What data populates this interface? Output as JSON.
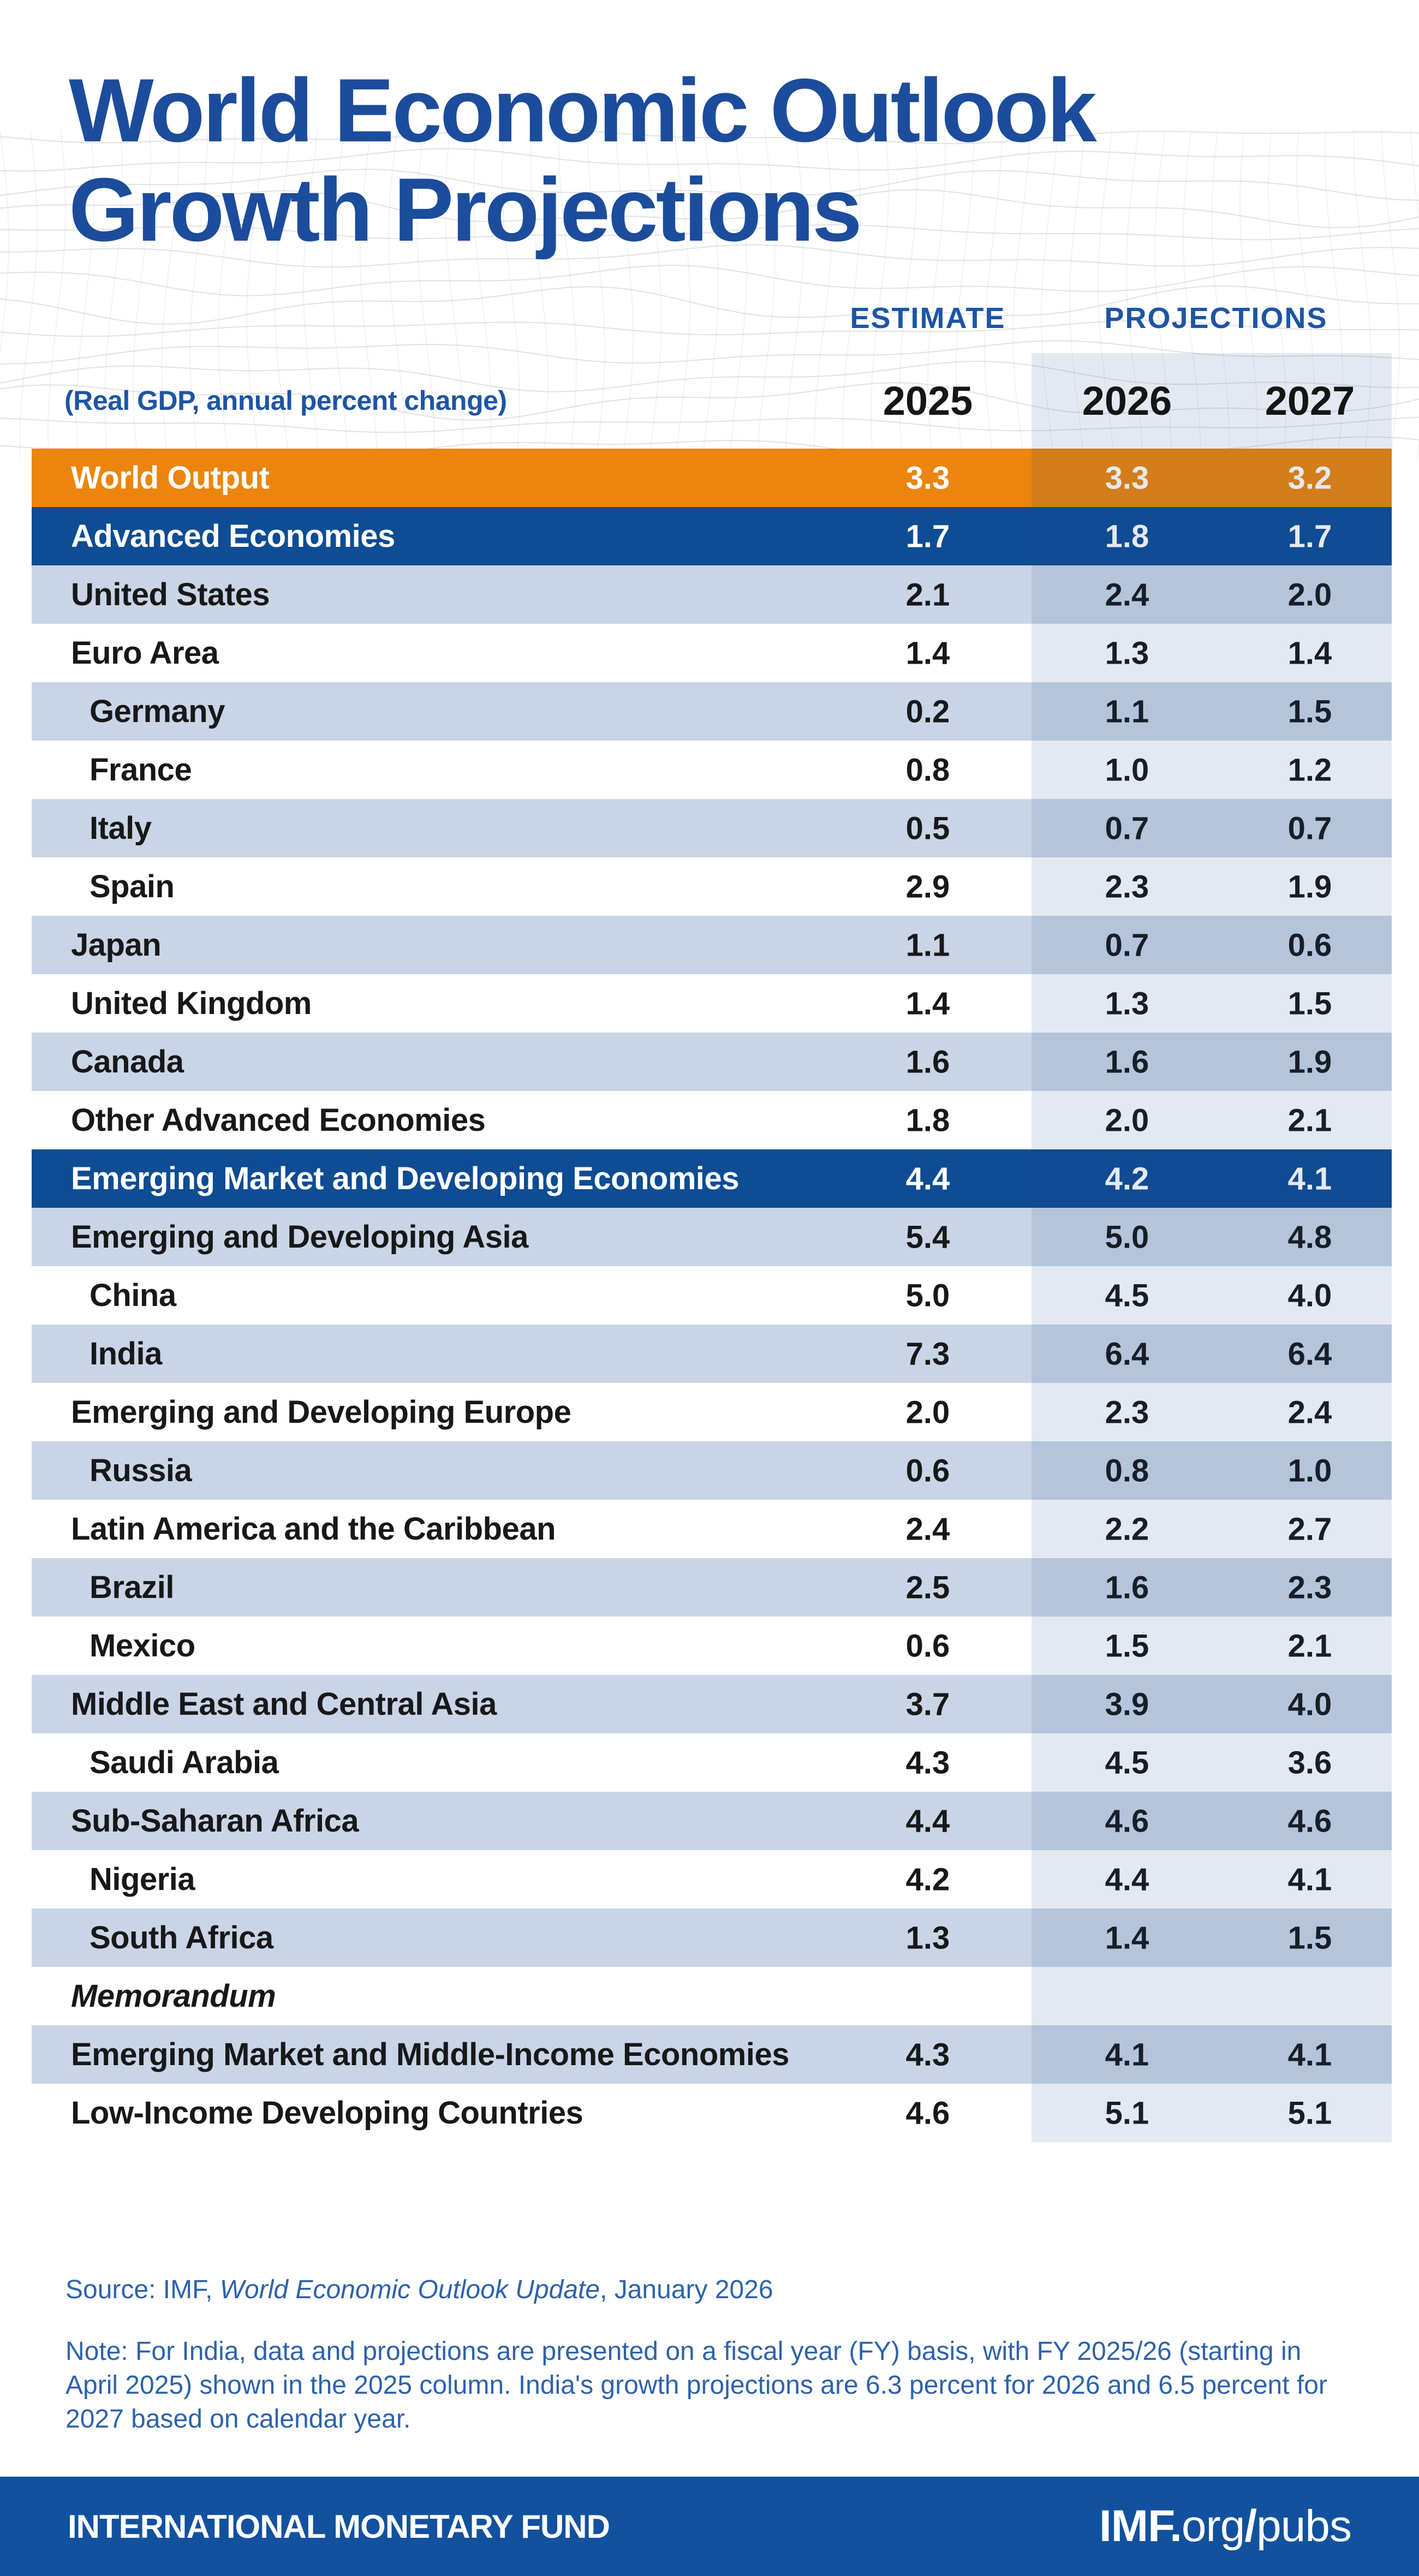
{
  "header": {
    "title_line1": "World Economic Outlook",
    "title_line2": "Growth Projections",
    "subtitle": "(Real GDP, annual percent change)",
    "estimate_label": "ESTIMATE",
    "projections_label": "PROJECTIONS",
    "years": [
      "2025",
      "2026",
      "2027"
    ]
  },
  "chart_data": {
    "type": "table",
    "title": "World Economic Outlook Growth Projections",
    "subtitle": "(Real GDP, annual percent change)",
    "column_groups": [
      {
        "label": "ESTIMATE",
        "columns": [
          "2025"
        ]
      },
      {
        "label": "PROJECTIONS",
        "columns": [
          "2026",
          "2027"
        ]
      }
    ],
    "columns": [
      "2025",
      "2026",
      "2027"
    ],
    "rows": [
      {
        "label": "World Output",
        "level": 0,
        "style": "world",
        "values": [
          3.3,
          3.3,
          3.2
        ]
      },
      {
        "label": "Advanced Economies",
        "level": 0,
        "style": "section",
        "values": [
          1.7,
          1.8,
          1.7
        ]
      },
      {
        "label": "United States",
        "level": 0,
        "style": "data",
        "values": [
          2.1,
          2.4,
          2.0
        ]
      },
      {
        "label": "Euro Area",
        "level": 0,
        "style": "data",
        "values": [
          1.4,
          1.3,
          1.4
        ]
      },
      {
        "label": "Germany",
        "level": 1,
        "style": "data",
        "values": [
          0.2,
          1.1,
          1.5
        ]
      },
      {
        "label": "France",
        "level": 1,
        "style": "data",
        "values": [
          0.8,
          1.0,
          1.2
        ]
      },
      {
        "label": "Italy",
        "level": 1,
        "style": "data",
        "values": [
          0.5,
          0.7,
          0.7
        ]
      },
      {
        "label": "Spain",
        "level": 1,
        "style": "data",
        "values": [
          2.9,
          2.3,
          1.9
        ]
      },
      {
        "label": "Japan",
        "level": 0,
        "style": "data",
        "values": [
          1.1,
          0.7,
          0.6
        ]
      },
      {
        "label": "United Kingdom",
        "level": 0,
        "style": "data",
        "values": [
          1.4,
          1.3,
          1.5
        ]
      },
      {
        "label": "Canada",
        "level": 0,
        "style": "data",
        "values": [
          1.6,
          1.6,
          1.9
        ]
      },
      {
        "label": "Other Advanced Economies",
        "level": 0,
        "style": "data",
        "values": [
          1.8,
          2.0,
          2.1
        ]
      },
      {
        "label": "Emerging Market and Developing Economies",
        "level": 0,
        "style": "section",
        "values": [
          4.4,
          4.2,
          4.1
        ]
      },
      {
        "label": "Emerging and Developing Asia",
        "level": 0,
        "style": "data",
        "values": [
          5.4,
          5.0,
          4.8
        ]
      },
      {
        "label": "China",
        "level": 1,
        "style": "data",
        "values": [
          5.0,
          4.5,
          4.0
        ]
      },
      {
        "label": "India",
        "level": 1,
        "style": "data",
        "values": [
          7.3,
          6.4,
          6.4
        ]
      },
      {
        "label": "Emerging and Developing Europe",
        "level": 0,
        "style": "data",
        "values": [
          2.0,
          2.3,
          2.4
        ]
      },
      {
        "label": "Russia",
        "level": 1,
        "style": "data",
        "values": [
          0.6,
          0.8,
          1.0
        ]
      },
      {
        "label": "Latin America and the Caribbean",
        "level": 0,
        "style": "data",
        "values": [
          2.4,
          2.2,
          2.7
        ]
      },
      {
        "label": "Brazil",
        "level": 1,
        "style": "data",
        "values": [
          2.5,
          1.6,
          2.3
        ]
      },
      {
        "label": "Mexico",
        "level": 1,
        "style": "data",
        "values": [
          0.6,
          1.5,
          2.1
        ]
      },
      {
        "label": "Middle East and Central Asia",
        "level": 0,
        "style": "data",
        "values": [
          3.7,
          3.9,
          4.0
        ]
      },
      {
        "label": "Saudi Arabia",
        "level": 1,
        "style": "data",
        "values": [
          4.3,
          4.5,
          3.6
        ]
      },
      {
        "label": "Sub-Saharan Africa",
        "level": 0,
        "style": "data",
        "values": [
          4.4,
          4.6,
          4.6
        ]
      },
      {
        "label": "Nigeria",
        "level": 1,
        "style": "data",
        "values": [
          4.2,
          4.4,
          4.1
        ]
      },
      {
        "label": "South Africa",
        "level": 1,
        "style": "data",
        "values": [
          1.3,
          1.4,
          1.5
        ]
      },
      {
        "label": "Memorandum",
        "level": 0,
        "style": "memo",
        "values": null
      },
      {
        "label": "Emerging Market and Middle-Income Economies",
        "level": 0,
        "style": "data",
        "values": [
          4.3,
          4.1,
          4.1
        ]
      },
      {
        "label": "Low-Income Developing Countries",
        "level": 0,
        "style": "data",
        "values": [
          4.6,
          5.1,
          5.1
        ]
      }
    ]
  },
  "footnotes": {
    "source_prefix": "Source: IMF, ",
    "source_publication": "World Economic Outlook Update",
    "source_suffix": ", January 2026",
    "note": "Note: For India, data and projections are presented on a fiscal year (FY) basis, with FY 2025/26 (starting in April 2025) shown in the 2025 column. India's growth projections are 6.3 percent for 2026 and 6.5 percent for 2027 based on calendar year."
  },
  "footer": {
    "org": "INTERNATIONAL MONETARY FUND",
    "url_bold": "IMF.",
    "url_mid": "org",
    "url_slash": "/",
    "url_end": "pubs"
  },
  "colors": {
    "accent_orange": "#EC850D",
    "accent_blue": "#0E4C94",
    "row_light_blue": "#C9D5E6",
    "projection_band_tint": "rgba(36,74,138,0.12)",
    "title_blue": "#1C4C9C",
    "label_blue": "#1D55A6",
    "footnote_blue": "#2E62AC",
    "footer_bar_blue": "#12519E"
  }
}
